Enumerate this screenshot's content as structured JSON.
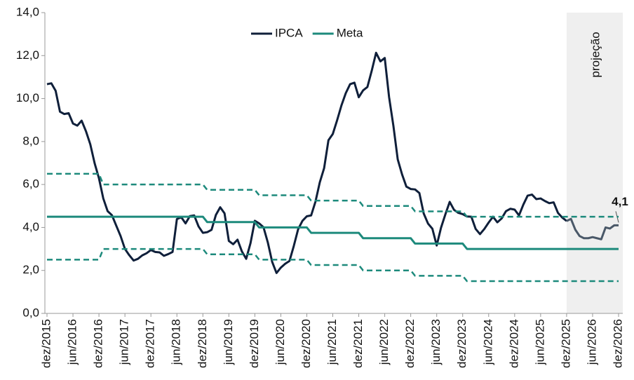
{
  "chart_data": {
    "type": "line",
    "categories": [
      "dez/2015",
      null,
      null,
      null,
      null,
      null,
      "jun/2016",
      null,
      null,
      null,
      null,
      null,
      "dez/2016",
      null,
      null,
      null,
      null,
      null,
      "jun/2017",
      null,
      null,
      null,
      null,
      null,
      "dez/2017",
      null,
      null,
      null,
      null,
      null,
      "jun/2018",
      null,
      null,
      null,
      null,
      null,
      "dez/2018",
      null,
      null,
      null,
      null,
      null,
      "jun/2019",
      null,
      null,
      null,
      null,
      null,
      "dez/2019",
      null,
      null,
      null,
      null,
      null,
      "jun/2020",
      null,
      null,
      null,
      null,
      null,
      "dez/2020",
      null,
      null,
      null,
      null,
      null,
      "jun/2021",
      null,
      null,
      null,
      null,
      null,
      "dez/2021",
      null,
      null,
      null,
      null,
      null,
      "jun/2022",
      null,
      null,
      null,
      null,
      null,
      "dez/2022",
      null,
      null,
      null,
      null,
      null,
      "jun/2023",
      null,
      null,
      null,
      null,
      null,
      "dez/2023",
      null,
      null,
      null,
      null,
      null,
      "jun/2024",
      null,
      null,
      null,
      null,
      null,
      "dez/2024",
      null,
      null,
      null,
      null,
      null,
      "jun/2025",
      null,
      null,
      null,
      null,
      null,
      "dez/2025",
      null,
      null,
      null,
      null,
      null,
      "jun/2026",
      null,
      null,
      null,
      null,
      null,
      "dez/2026"
    ],
    "series": [
      {
        "name": "IPCA",
        "color": "#0f1f3a",
        "projection_color": "#4a5868",
        "width": 3,
        "values": [
          10.67,
          10.71,
          10.36,
          9.39,
          9.28,
          9.32,
          8.84,
          8.74,
          8.97,
          8.48,
          7.87,
          6.99,
          6.29,
          5.35,
          4.76,
          4.57,
          4.08,
          3.6,
          3.0,
          2.71,
          2.46,
          2.54,
          2.7,
          2.8,
          2.95,
          2.86,
          2.84,
          2.68,
          2.76,
          2.86,
          4.39,
          4.48,
          4.19,
          4.53,
          4.56,
          4.05,
          3.75,
          3.78,
          3.89,
          4.58,
          4.94,
          4.66,
          3.37,
          3.22,
          3.43,
          2.89,
          2.54,
          3.27,
          4.31,
          4.19,
          4.01,
          3.3,
          2.4,
          1.88,
          2.13,
          2.31,
          2.44,
          3.14,
          3.92,
          4.31,
          4.52,
          4.56,
          5.2,
          6.1,
          6.76,
          8.06,
          8.35,
          8.99,
          9.68,
          10.25,
          10.67,
          10.74,
          10.06,
          10.38,
          10.54,
          11.3,
          12.13,
          11.73,
          11.89,
          10.07,
          8.73,
          7.17,
          6.47,
          5.9,
          5.79,
          5.77,
          5.6,
          4.65,
          4.18,
          3.94,
          3.16,
          3.99,
          4.61,
          5.19,
          4.82,
          4.68,
          4.62,
          4.51,
          4.5,
          3.93,
          3.69,
          3.93,
          4.23,
          4.5,
          4.24,
          4.42,
          4.76,
          4.87,
          4.83,
          4.56,
          5.06,
          5.48,
          5.53,
          5.32,
          5.35,
          5.23,
          5.13,
          5.17,
          4.68,
          4.46,
          4.3,
          4.4,
          3.9,
          3.6,
          3.5,
          3.5,
          3.55,
          3.5,
          3.45,
          4.0,
          3.95,
          4.1,
          4.1
        ],
        "value_labels": [
          null,
          null,
          null,
          null,
          null,
          null,
          null,
          null,
          null,
          null,
          null,
          null,
          null,
          null,
          null,
          null,
          null,
          null,
          null,
          null,
          null,
          null,
          null,
          null,
          null,
          null,
          null,
          null,
          null,
          null,
          null,
          null,
          null,
          null,
          null,
          null,
          null,
          null,
          null,
          null,
          null,
          null,
          null,
          null,
          null,
          null,
          null,
          null,
          null,
          null,
          null,
          null,
          null,
          null,
          null,
          null,
          null,
          null,
          null,
          null,
          null,
          null,
          null,
          null,
          null,
          null,
          null,
          null,
          null,
          null,
          null,
          null,
          null,
          null,
          null,
          null,
          null,
          null,
          null,
          null,
          null,
          null,
          null,
          null,
          null,
          null,
          null,
          null,
          null,
          null,
          null,
          null,
          null,
          null,
          null,
          null,
          null,
          null,
          null,
          null,
          null,
          null,
          null,
          null,
          null,
          null,
          null,
          null,
          null,
          null,
          null,
          null,
          null,
          null,
          null,
          null,
          null,
          null,
          null,
          null,
          null,
          null,
          null,
          null,
          null,
          null,
          null,
          null,
          null,
          null,
          null,
          null,
          "4,1"
        ]
      },
      {
        "name": "Meta",
        "color": "#1d8a7c",
        "width": 3,
        "values": [
          4.5,
          4.5,
          4.5,
          4.5,
          4.5,
          4.5,
          4.5,
          4.5,
          4.5,
          4.5,
          4.5,
          4.5,
          4.5,
          4.5,
          4.5,
          4.5,
          4.5,
          4.5,
          4.5,
          4.5,
          4.5,
          4.5,
          4.5,
          4.5,
          4.5,
          4.5,
          4.5,
          4.5,
          4.5,
          4.5,
          4.5,
          4.5,
          4.5,
          4.5,
          4.5,
          4.5,
          4.5,
          4.25,
          4.25,
          4.25,
          4.25,
          4.25,
          4.25,
          4.25,
          4.25,
          4.25,
          4.25,
          4.25,
          4.25,
          4.0,
          4.0,
          4.0,
          4.0,
          4.0,
          4.0,
          4.0,
          4.0,
          4.0,
          4.0,
          4.0,
          4.0,
          3.75,
          3.75,
          3.75,
          3.75,
          3.75,
          3.75,
          3.75,
          3.75,
          3.75,
          3.75,
          3.75,
          3.75,
          3.5,
          3.5,
          3.5,
          3.5,
          3.5,
          3.5,
          3.5,
          3.5,
          3.5,
          3.5,
          3.5,
          3.5,
          3.25,
          3.25,
          3.25,
          3.25,
          3.25,
          3.25,
          3.25,
          3.25,
          3.25,
          3.25,
          3.25,
          3.25,
          3,
          3,
          3,
          3,
          3,
          3,
          3,
          3,
          3,
          3,
          3,
          3,
          3,
          3,
          3,
          3,
          3,
          3,
          3,
          3,
          3,
          3,
          3,
          3,
          3,
          3,
          3,
          3,
          3,
          3,
          3,
          3,
          3,
          3,
          3,
          3
        ]
      },
      {
        "color": "#1d8a7c",
        "width": 2.5,
        "dashed": true,
        "values": [
          6.5,
          6.5,
          6.5,
          6.5,
          6.5,
          6.5,
          6.5,
          6.5,
          6.5,
          6.5,
          6.5,
          6.5,
          6.5,
          6,
          6,
          6,
          6,
          6,
          6,
          6,
          6,
          6,
          6,
          6,
          6,
          6,
          6,
          6,
          6,
          6,
          6,
          6,
          6,
          6,
          6,
          6,
          6,
          5.75,
          5.75,
          5.75,
          5.75,
          5.75,
          5.75,
          5.75,
          5.75,
          5.75,
          5.75,
          5.75,
          5.75,
          5.5,
          5.5,
          5.5,
          5.5,
          5.5,
          5.5,
          5.5,
          5.5,
          5.5,
          5.5,
          5.5,
          5.5,
          5.25,
          5.25,
          5.25,
          5.25,
          5.25,
          5.25,
          5.25,
          5.25,
          5.25,
          5.25,
          5.25,
          5.25,
          5,
          5,
          5,
          5,
          5,
          5,
          5,
          5,
          5,
          5,
          5,
          5,
          4.75,
          4.75,
          4.75,
          4.75,
          4.75,
          4.75,
          4.75,
          4.75,
          4.75,
          4.75,
          4.75,
          4.75,
          4.5,
          4.5,
          4.5,
          4.5,
          4.5,
          4.5,
          4.5,
          4.5,
          4.5,
          4.5,
          4.5,
          4.5,
          4.5,
          4.5,
          4.5,
          4.5,
          4.5,
          4.5,
          4.5,
          4.5,
          4.5,
          4.5,
          4.5,
          4.5,
          4.5,
          4.5,
          4.5,
          4.5,
          4.5,
          4.5,
          4.5,
          4.5,
          4.5,
          4.5,
          4.5,
          4.5
        ]
      },
      {
        "color": "#1d8a7c",
        "width": 2.5,
        "dashed": true,
        "values": [
          2.5,
          2.5,
          2.5,
          2.5,
          2.5,
          2.5,
          2.5,
          2.5,
          2.5,
          2.5,
          2.5,
          2.5,
          2.5,
          3,
          3,
          3,
          3,
          3,
          3,
          3,
          3,
          3,
          3,
          3,
          3,
          3,
          3,
          3,
          3,
          3,
          3,
          3,
          3,
          3,
          3,
          3,
          3,
          2.75,
          2.75,
          2.75,
          2.75,
          2.75,
          2.75,
          2.75,
          2.75,
          2.75,
          2.75,
          2.75,
          2.75,
          2.5,
          2.5,
          2.5,
          2.5,
          2.5,
          2.5,
          2.5,
          2.5,
          2.5,
          2.5,
          2.5,
          2.5,
          2.25,
          2.25,
          2.25,
          2.25,
          2.25,
          2.25,
          2.25,
          2.25,
          2.25,
          2.25,
          2.25,
          2.25,
          2,
          2,
          2,
          2,
          2,
          2,
          2,
          2,
          2,
          2,
          2,
          2,
          1.75,
          1.75,
          1.75,
          1.75,
          1.75,
          1.75,
          1.75,
          1.75,
          1.75,
          1.75,
          1.75,
          1.75,
          1.5,
          1.5,
          1.5,
          1.5,
          1.5,
          1.5,
          1.5,
          1.5,
          1.5,
          1.5,
          1.5,
          1.5,
          1.5,
          1.5,
          1.5,
          1.5,
          1.5,
          1.5,
          1.5,
          1.5,
          1.5,
          1.5,
          1.5,
          1.5,
          1.5,
          1.5,
          1.5,
          1.5,
          1.5,
          1.5,
          1.5,
          1.5,
          1.5,
          1.5,
          1.5,
          1.5
        ]
      }
    ],
    "projection": {
      "label": "projeção",
      "start": "dez/2025",
      "color": "#efefef"
    },
    "ylim": [
      0,
      14
    ],
    "yticks": [
      {
        "value": 0,
        "label": "0,0"
      },
      {
        "value": 2,
        "label": "2,0"
      },
      {
        "value": 4,
        "label": "4,0"
      },
      {
        "value": 6,
        "label": "6,0"
      },
      {
        "value": 8,
        "label": "8,0"
      },
      {
        "value": 10,
        "label": "10,0"
      },
      {
        "value": 12,
        "label": "12,0"
      },
      {
        "value": 14,
        "label": "14,0"
      }
    ],
    "grid": false,
    "legend": "top"
  }
}
